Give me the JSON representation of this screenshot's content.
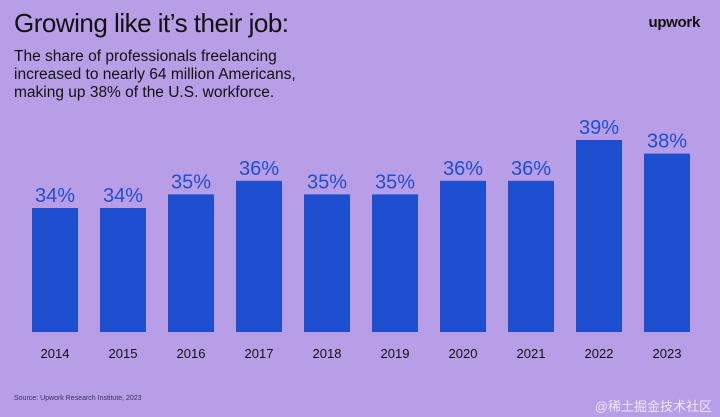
{
  "page": {
    "title": "Growing like it’s their job:",
    "subtitle": "The share of professionals freelancing increased to nearly 64 million Americans, making up 38% of the U.S. workforce.",
    "logo": "upwork",
    "source": "Source: Upwork Research Institute, 2023",
    "watermark": "@稀土掘金技术社区"
  },
  "colors": {
    "background": "#b79ee6",
    "bar": "#1f4fd1",
    "text": "#111111"
  },
  "chart_data": {
    "type": "bar",
    "categories": [
      "2014",
      "2015",
      "2016",
      "2017",
      "2018",
      "2019",
      "2020",
      "2021",
      "2022",
      "2023"
    ],
    "values": [
      34,
      34,
      35,
      36,
      35,
      35,
      36,
      36,
      39,
      38
    ],
    "value_labels": [
      "34%",
      "34%",
      "35%",
      "36%",
      "35%",
      "35%",
      "36%",
      "36%",
      "39%",
      "38%"
    ],
    "xlabel": "",
    "ylabel": "",
    "grid": false,
    "legend": "none"
  }
}
